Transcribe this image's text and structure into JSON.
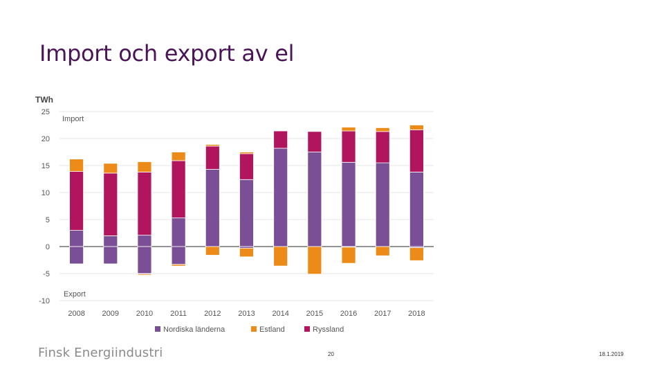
{
  "slide": {
    "title": "Import och export av el",
    "brand": "Finsk Energiindustri",
    "page_number": "20",
    "date": "18.1.2019"
  },
  "chart_data": {
    "type": "bar",
    "stacked": true,
    "title": "",
    "ylabel": "TWh",
    "ylim": [
      -10,
      25
    ],
    "yticks": [
      25,
      20,
      15,
      10,
      5,
      0,
      -5,
      -10
    ],
    "grid": true,
    "legend_position": "bottom",
    "annotations": [
      "Import",
      "Export"
    ],
    "categories": [
      "2008",
      "2009",
      "2010",
      "2011",
      "2012",
      "2013",
      "2014",
      "2015",
      "2016",
      "2017",
      "2018"
    ],
    "import": [
      {
        "name": "Nordiska länderna",
        "color": "#7b4f96",
        "values": [
          3.0,
          2.0,
          2.1,
          5.3,
          14.3,
          12.4,
          18.2,
          17.5,
          15.6,
          15.5,
          13.8
        ]
      },
      {
        "name": "Ryssland",
        "color": "#b0155e",
        "values": [
          10.9,
          11.6,
          11.7,
          10.6,
          4.3,
          4.8,
          3.2,
          3.8,
          5.8,
          5.8,
          7.8
        ]
      },
      {
        "name": "Estland",
        "color": "#ec8b17",
        "values": [
          2.3,
          1.8,
          1.9,
          1.6,
          0.3,
          0.3,
          0.0,
          0.0,
          0.7,
          0.7,
          0.9
        ]
      }
    ],
    "export": [
      {
        "name": "Nordiska länderna",
        "color": "#7b4f96",
        "values": [
          -3.2,
          -3.2,
          -5.0,
          -3.3,
          0.0,
          -0.3,
          0.0,
          0.0,
          -0.1,
          0.0,
          -0.2
        ]
      },
      {
        "name": "Ryssland",
        "color": "#b0155e",
        "values": [
          0.0,
          0.0,
          -0.1,
          0.0,
          0.0,
          0.0,
          0.0,
          0.0,
          0.0,
          0.0,
          0.0
        ]
      },
      {
        "name": "Estland",
        "color": "#ec8b17",
        "values": [
          0.0,
          0.0,
          -0.2,
          -0.3,
          -1.6,
          -1.6,
          -3.6,
          -5.1,
          -3.0,
          -1.7,
          -2.4
        ]
      }
    ],
    "legend": [
      {
        "name": "Nordiska länderna",
        "color": "#7b4f96"
      },
      {
        "name": "Estland",
        "color": "#ec8b17"
      },
      {
        "name": "Ryssland",
        "color": "#b0155e"
      }
    ]
  }
}
